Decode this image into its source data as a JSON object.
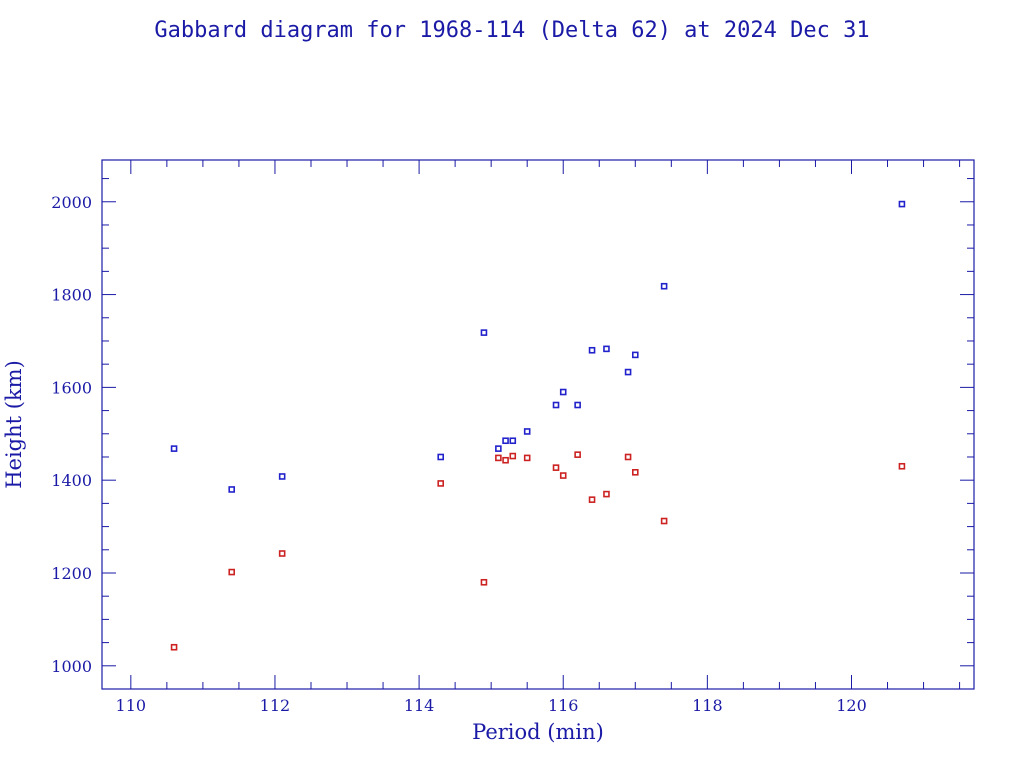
{
  "chart_data": {
    "type": "scatter",
    "title": "Gabbard diagram for 1968-114 (Delta 62) at 2024 Dec 31",
    "xlabel": "Period (min)",
    "ylabel": "Height (km)",
    "xlim": [
      109.6,
      121.7
    ],
    "ylim": [
      950,
      2090
    ],
    "x_ticks": [
      110,
      112,
      114,
      116,
      118,
      120
    ],
    "y_ticks": [
      1000,
      1200,
      1400,
      1600,
      1800,
      2000
    ],
    "x_minor_step": 0.5,
    "y_minor_step": 50,
    "grid": false,
    "series": [
      {
        "color": "#2222cc",
        "points": [
          [
            110.6,
            1468
          ],
          [
            111.4,
            1380
          ],
          [
            112.1,
            1408
          ],
          [
            114.3,
            1450
          ],
          [
            114.9,
            1718
          ],
          [
            115.1,
            1468
          ],
          [
            115.2,
            1485
          ],
          [
            115.3,
            1485
          ],
          [
            115.5,
            1505
          ],
          [
            115.9,
            1562
          ],
          [
            116.0,
            1590
          ],
          [
            116.2,
            1562
          ],
          [
            116.4,
            1680
          ],
          [
            116.6,
            1683
          ],
          [
            116.9,
            1633
          ],
          [
            117.0,
            1670
          ],
          [
            117.4,
            1818
          ],
          [
            120.7,
            1995
          ]
        ]
      },
      {
        "color": "#cc2222",
        "points": [
          [
            110.6,
            1040
          ],
          [
            111.4,
            1202
          ],
          [
            112.1,
            1242
          ],
          [
            114.3,
            1393
          ],
          [
            114.9,
            1180
          ],
          [
            115.1,
            1448
          ],
          [
            115.2,
            1443
          ],
          [
            115.3,
            1452
          ],
          [
            115.5,
            1448
          ],
          [
            115.9,
            1427
          ],
          [
            116.0,
            1410
          ],
          [
            116.2,
            1455
          ],
          [
            116.4,
            1358
          ],
          [
            116.6,
            1370
          ],
          [
            116.9,
            1450
          ],
          [
            117.0,
            1417
          ],
          [
            117.4,
            1312
          ],
          [
            120.7,
            1430
          ]
        ]
      }
    ]
  }
}
